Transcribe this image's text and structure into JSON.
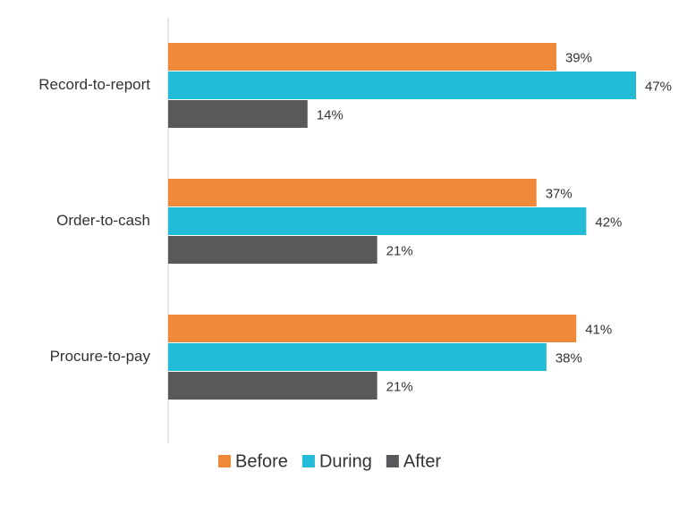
{
  "chart_data": {
    "type": "bar",
    "orientation": "horizontal",
    "categories": [
      "Record-to-report",
      "Order-to-cash",
      "Procure-to-pay"
    ],
    "series": [
      {
        "name": "Before",
        "color": "#f0883a",
        "values": [
          39,
          37,
          41
        ],
        "value_labels": [
          "39%",
          "37%",
          "41%"
        ]
      },
      {
        "name": "During",
        "color": "#22bcd6",
        "values": [
          47,
          42,
          38
        ],
        "value_labels": [
          "47%",
          "42%",
          "38%"
        ]
      },
      {
        "name": "After",
        "color": "#58595b",
        "values": [
          14,
          21,
          21
        ],
        "value_labels": [
          "14%",
          "21%",
          "21%"
        ]
      }
    ],
    "legend": "bottom"
  }
}
